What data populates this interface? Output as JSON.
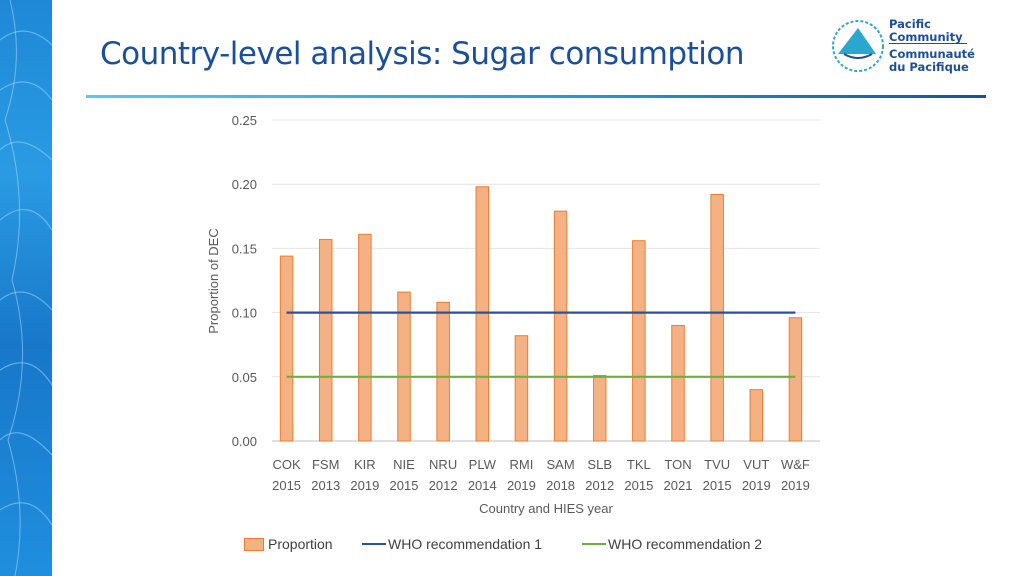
{
  "slide": {
    "title": "Country-level analysis: Sugar consumption"
  },
  "logo": {
    "line1": "Pacific",
    "line2": "Community",
    "line3": "Communauté",
    "line4": "du Pacifique"
  },
  "colors": {
    "bar_fill": "#f4b183",
    "bar_stroke": "#ed7d31",
    "who1": "#2f4e9e",
    "who2": "#70ad47",
    "title": "#1b4f9c"
  },
  "chart_data": {
    "type": "bar",
    "title": "",
    "xlabel": "Country and HIES year",
    "ylabel": "Proportion of DEC",
    "ylim": [
      0,
      0.25
    ],
    "yticks": [
      "0.00",
      "0.05",
      "0.10",
      "0.15",
      "0.20",
      "0.25"
    ],
    "categories": [
      [
        "COK",
        "2015"
      ],
      [
        "FSM",
        "2013"
      ],
      [
        "KIR",
        "2019"
      ],
      [
        "NIE",
        "2015"
      ],
      [
        "NRU",
        "2012"
      ],
      [
        "PLW",
        "2014"
      ],
      [
        "RMI",
        "2019"
      ],
      [
        "SAM",
        "2018"
      ],
      [
        "SLB",
        "2012"
      ],
      [
        "TKL",
        "2015"
      ],
      [
        "TON",
        "2021"
      ],
      [
        "TVU",
        "2015"
      ],
      [
        "VUT",
        "2019"
      ],
      [
        "W&F",
        "2019"
      ]
    ],
    "series": [
      {
        "name": "Proportion",
        "kind": "bar",
        "values": [
          0.144,
          0.157,
          0.161,
          0.116,
          0.108,
          0.198,
          0.082,
          0.179,
          0.051,
          0.156,
          0.09,
          0.192,
          0.04,
          0.096
        ]
      },
      {
        "name": "WHO recommendation 1",
        "kind": "line",
        "value": 0.1
      },
      {
        "name": "WHO recommendation 2",
        "kind": "line",
        "value": 0.05
      }
    ],
    "grid": true,
    "legend": "bottom"
  }
}
